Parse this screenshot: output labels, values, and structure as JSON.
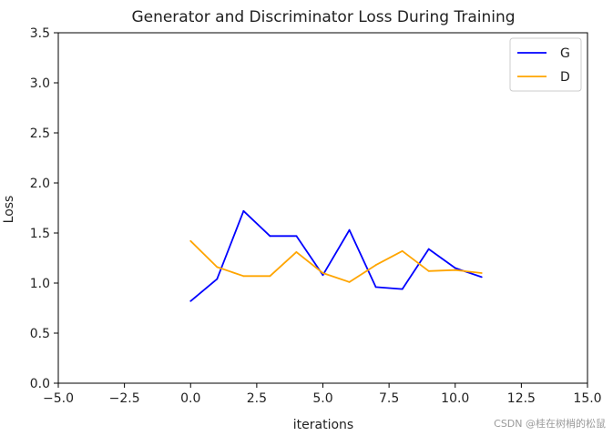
{
  "chart_data": {
    "type": "line",
    "title": "Generator and Discriminator Loss During Training",
    "xlabel": "iterations",
    "ylabel": "Loss",
    "xlim": [
      -5.0,
      15.0
    ],
    "ylim": [
      0.0,
      3.5
    ],
    "xticks": [
      -5.0,
      -2.5,
      0.0,
      2.5,
      5.0,
      7.5,
      10.0,
      12.5,
      15.0
    ],
    "xtick_labels": [
      "−5.0",
      "−2.5",
      "0.0",
      "2.5",
      "5.0",
      "7.5",
      "10.0",
      "12.5",
      "15.0"
    ],
    "yticks": [
      0.0,
      0.5,
      1.0,
      1.5,
      2.0,
      2.5,
      3.0,
      3.5
    ],
    "ytick_labels": [
      "0.0",
      "0.5",
      "1.0",
      "1.5",
      "2.0",
      "2.5",
      "3.0",
      "3.5"
    ],
    "grid": false,
    "legend_position": "top-right",
    "x": [
      0,
      1,
      2,
      3,
      4,
      5,
      6,
      7,
      8,
      9,
      10,
      11
    ],
    "series": [
      {
        "name": "G",
        "color": "#0000ff",
        "values": [
          0.82,
          1.04,
          1.72,
          1.47,
          1.47,
          1.08,
          1.53,
          0.96,
          0.94,
          1.34,
          1.15,
          1.06
        ]
      },
      {
        "name": "D",
        "color": "#ffa500",
        "values": [
          1.42,
          1.16,
          1.07,
          1.07,
          1.31,
          1.1,
          1.01,
          1.18,
          1.32,
          1.12,
          1.13,
          1.1
        ]
      }
    ]
  },
  "watermark": "CSDN @桂在树梢的松鼠"
}
